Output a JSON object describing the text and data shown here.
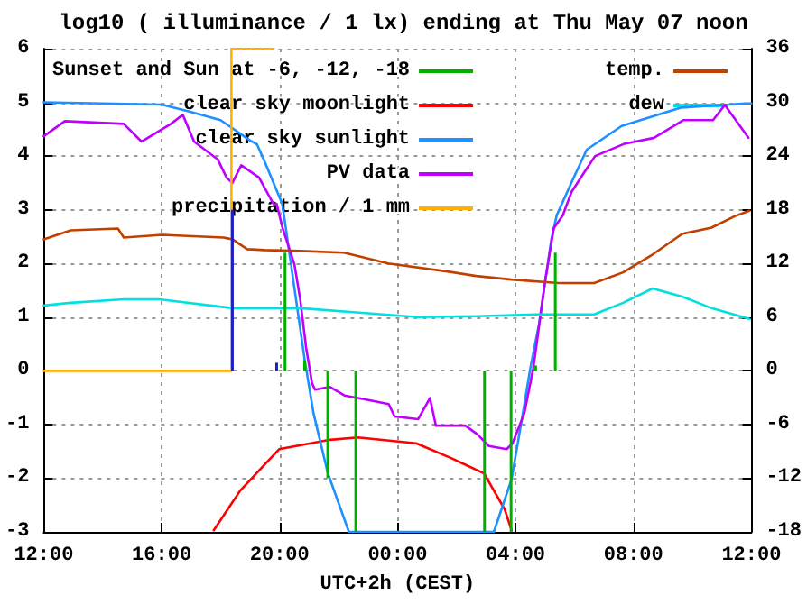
{
  "chart_data": {
    "type": "line",
    "title": "log10 ( illuminance / 1 lx) ending at Thu May 07 noon",
    "xlabel": "UTC+2h (CEST)",
    "xlim": [
      "--05-06T12:00",
      "--05-07T12:00"
    ],
    "xticks": [
      {
        "value": "--05-06T12:00",
        "label": "12:00"
      },
      {
        "value": "--05-06T16:00",
        "label": "16:00"
      },
      {
        "value": "--05-06T20:00",
        "label": "20:00"
      },
      {
        "value": "--05-07T00:00",
        "label": "00:00"
      },
      {
        "value": "--05-07T04:00",
        "label": "04:00"
      },
      {
        "value": "--05-07T08:00",
        "label": "08:00"
      },
      {
        "value": "--05-07T12:00",
        "label": "12:00"
      }
    ],
    "ylim": [
      -3,
      6
    ],
    "yticks": [
      -3,
      -2,
      -1,
      0,
      1,
      2,
      3,
      4,
      5,
      6
    ],
    "y2lim": [
      -18,
      36
    ],
    "y2ticks": [
      -18,
      -12,
      -6,
      0,
      6,
      12,
      18,
      24,
      30,
      36
    ],
    "grid": true,
    "legend": "top",
    "line_style": "solid",
    "marker": "none",
    "series": [
      {
        "name": "Sunset and Sun at -6, -12, -18",
        "type": "bar",
        "color": "#00b000",
        "x": [
          "--05-06T20:11",
          "--05-06T20:51",
          "--05-06T21:38",
          "--05-06T22:35",
          "--05-07T02:57",
          "--05-07T03:51",
          "--05-07T04:41",
          "--05-07T05:21"
        ],
        "values": [
          2.2,
          0.2,
          -2,
          -3,
          -3,
          -3,
          0.1,
          2.2
        ]
      },
      {
        "name": "clear sky moonlight",
        "color": "#ff0000",
        "x": [
          "--05-06T17:46",
          "--05-06T18:40",
          "--05-06T19:59",
          "--05-06T21:38",
          "--05-06T22:39",
          "--05-07T00:38",
          "--05-07T01:50",
          "--05-07T02:56",
          "--05-07T03:38",
          "--05-07T03:52"
        ],
        "values": [
          -2.97,
          -2.23,
          -1.46,
          -1.29,
          -1.24,
          -1.35,
          -1.63,
          -1.91,
          -2.58,
          -2.97
        ]
      },
      {
        "name": "clear sky sunlight",
        "color": "#1e90ff",
        "x": [
          "--05-06T12:00",
          "--05-06T16:00",
          "--05-06T17:00",
          "--05-06T18:00",
          "--05-06T19:00",
          "--05-06T19:14",
          "--05-06T19:30",
          "--05-06T20:05",
          "--05-06T20:09",
          "--05-06T20:51",
          "--05-06T21:09",
          "--05-06T21:38",
          "--05-06T22:21",
          "--05-07T03:16",
          "--05-07T03:52",
          "--05-07T04:13",
          "--05-07T04:30",
          "--05-07T04:48",
          "--05-07T05:13",
          "--05-07T05:24",
          "--05-07T05:56",
          "--05-07T06:25",
          "--05-07T07:36",
          "--05-07T09:36",
          "--05-07T11:48",
          "--05-07T12:00"
        ],
        "values": [
          5,
          4.96,
          4.82,
          4.67,
          4.29,
          4.22,
          3.89,
          3.12,
          2.89,
          0.21,
          -0.79,
          -1.9,
          -3,
          -3,
          -2.02,
          -0.9,
          0.04,
          0.88,
          2.45,
          2.9,
          3.55,
          4.12,
          4.56,
          4.9,
          4.98,
          4.98
        ]
      },
      {
        "name": "PV data",
        "color": "#c000ff",
        "x": [
          "--05-06T12:00",
          "--05-06T12:43",
          "--05-06T14:43",
          "--05-06T15:19",
          "--05-06T16:19",
          "--05-06T16:43",
          "--05-06T17:06",
          "--05-06T17:54",
          "--05-06T18:12",
          "--05-06T18:24",
          "--05-06T18:42",
          "--05-06T19:18",
          "--05-06T19:48",
          "--05-06T19:54",
          "--05-06T20:06",
          "--05-06T20:30",
          "--05-06T20:42",
          "--05-06T20:54",
          "--05-06T21:06",
          "--05-06T21:12",
          "--05-06T21:42",
          "--05-06T22:12",
          "--05-06T22:42",
          "--05-06T23:42",
          "--05-06T23:54",
          "--05-07T00:42",
          "--05-07T01:06",
          "--05-07T01:18",
          "--05-07T02:18",
          "--05-07T02:42",
          "--05-07T03:06",
          "--05-07T03:42",
          "--05-07T03:54",
          "--05-07T04:18",
          "--05-07T04:36",
          "--05-07T04:42",
          "--05-07T05:00",
          "--05-07T05:18",
          "--05-07T05:36",
          "--05-07T05:54",
          "--05-07T06:18",
          "--05-07T06:42",
          "--05-07T07:42",
          "--05-07T08:42",
          "--05-07T09:42",
          "--05-07T10:42",
          "--05-07T11:06",
          "--05-07T11:54"
        ],
        "values": [
          4.37,
          4.65,
          4.6,
          4.27,
          4.6,
          4.77,
          4.27,
          3.94,
          3.6,
          3.5,
          3.83,
          3.6,
          3.1,
          3.11,
          2.66,
          1.99,
          1.33,
          0.43,
          -0.23,
          -0.35,
          -0.3,
          -0.46,
          -0.51,
          -0.62,
          -0.85,
          -0.9,
          -0.51,
          -1.02,
          -1.02,
          -1.18,
          -1.4,
          -1.46,
          -1.35,
          -0.79,
          0.04,
          0.43,
          1.66,
          2.66,
          2.89,
          3.33,
          3.67,
          4.0,
          4.23,
          4.34,
          4.67,
          4.67,
          4.95,
          4.34
        ]
      },
      {
        "name": "precipitation / 1 mm",
        "color": "#ffb000",
        "x": [
          "--05-06T12:00",
          "--05-06T18:22",
          "--05-06T18:22",
          "--05-06T19:48"
        ],
        "values": [
          0,
          0,
          6,
          6
        ]
      },
      {
        "type": "bar",
        "color": "#2020c0",
        "x": [
          "--05-06T18:24",
          "--05-06T19:54"
        ],
        "values": [
          3,
          0.15
        ]
      },
      {
        "name": "temp.",
        "axis": "y2",
        "color": "#c04000",
        "x": [
          "--05-06T12:00",
          "--05-06T12:55",
          "--05-06T14:31",
          "--05-06T14:43",
          "--05-06T16:01",
          "--05-06T18:06",
          "--05-06T18:24",
          "--05-06T18:54",
          "--05-06T19:30",
          "--05-06T20:42",
          "--05-06T22:11",
          "--05-06T23:41",
          "--05-07T01:41",
          "--05-07T02:40",
          "--05-07T03:52",
          "--05-07T05:28",
          "--05-07T06:40",
          "--05-07T07:39",
          "--05-07T08:39",
          "--05-07T09:39",
          "--05-07T10:39",
          "--05-07T11:27",
          "--05-07T11:56"
        ],
        "values": [
          14.7,
          15.7,
          15.9,
          14.9,
          15.2,
          14.9,
          14.7,
          13.6,
          13.5,
          13.4,
          13.2,
          12.0,
          11.1,
          10.6,
          10.2,
          9.8,
          9.8,
          11.0,
          13.0,
          15.3,
          16.0,
          17.3,
          17.9
        ]
      },
      {
        "name": "dew",
        "axis": "y2",
        "color": "#00e0e0",
        "x": [
          "--05-06T12:00",
          "--05-06T12:55",
          "--05-06T14:43",
          "--05-06T15:55",
          "--05-06T18:24",
          "--05-06T20:42",
          "--05-06T22:42",
          "--05-07T00:42",
          "--05-07T02:42",
          "--05-07T04:42",
          "--05-07T06:40",
          "--05-07T07:39",
          "--05-07T08:39",
          "--05-07T09:39",
          "--05-07T10:39",
          "--05-07T11:56"
        ],
        "values": [
          7.3,
          7.6,
          8.0,
          8.0,
          7.0,
          7.0,
          6.5,
          6.0,
          6.1,
          6.3,
          6.3,
          7.6,
          9.2,
          8.3,
          7.0,
          5.8
        ]
      }
    ]
  }
}
